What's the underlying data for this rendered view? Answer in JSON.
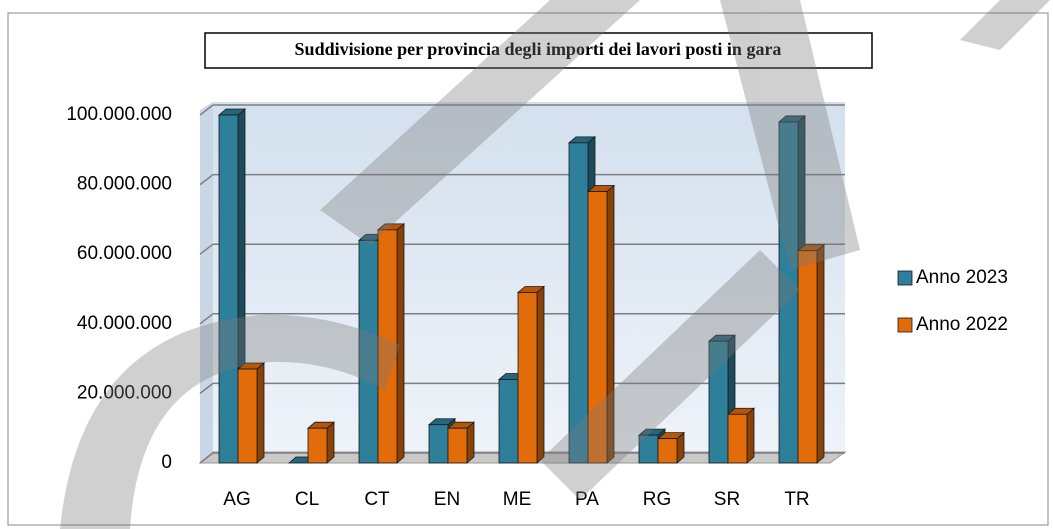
{
  "chart_data": {
    "type": "bar",
    "title": "Suddivisione per provincia degli importi dei lavori posti in gara",
    "categories": [
      "AG",
      "CL",
      "CT",
      "EN",
      "ME",
      "PA",
      "RG",
      "SR",
      "TR"
    ],
    "series": [
      {
        "name": "Anno 2023",
        "color": "#2e7f9a",
        "values": [
          100000000,
          0,
          64000000,
          11000000,
          24000000,
          92000000,
          8000000,
          35000000,
          98000000
        ]
      },
      {
        "name": "Anno 2022",
        "color": "#e36c0a",
        "values": [
          27000000,
          10000000,
          67000000,
          10000000,
          49000000,
          78000000,
          7000000,
          14000000,
          61000000
        ]
      }
    ],
    "ylim": [
      0,
      100000000
    ],
    "yticks": [
      0,
      {
        "value": 20000000,
        "label": "20.000.000"
      },
      {
        "value": 40000000,
        "label": "40.000.000"
      },
      {
        "value": 60000000,
        "label": "60.000.000"
      },
      {
        "value": 80000000,
        "label": "80.000.000"
      },
      {
        "value": 100000000,
        "label": "100.000.000"
      }
    ],
    "grid": true,
    "legend": "right"
  }
}
